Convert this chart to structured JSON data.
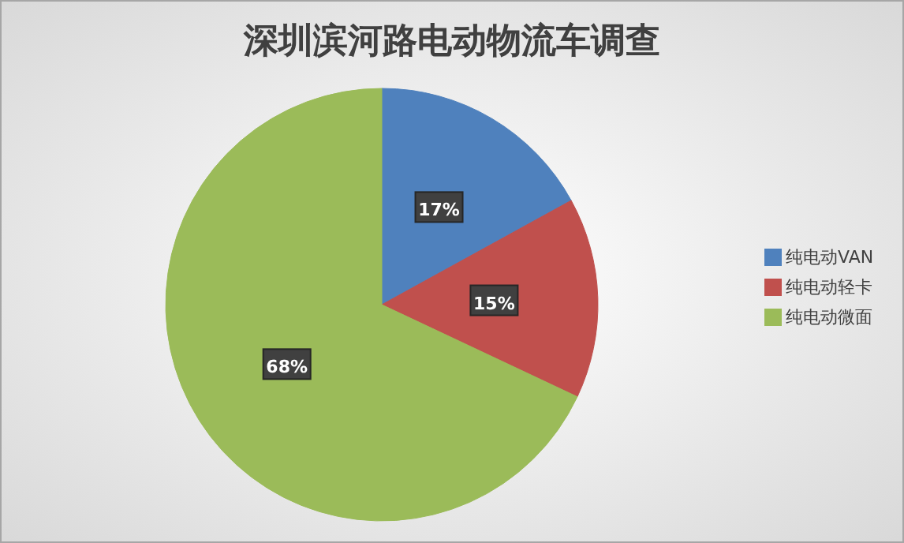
{
  "chart_data": {
    "type": "pie",
    "title": "深圳滨河路电动物流车调查",
    "categories": [
      "纯电动VAN",
      "纯电动轻卡",
      "纯电动微面"
    ],
    "values": [
      17,
      15,
      68
    ],
    "value_labels": [
      "17%",
      "15%",
      "68%"
    ],
    "colors": [
      "#4f81bd",
      "#c0504d",
      "#9bbb59"
    ],
    "legend": "right"
  }
}
